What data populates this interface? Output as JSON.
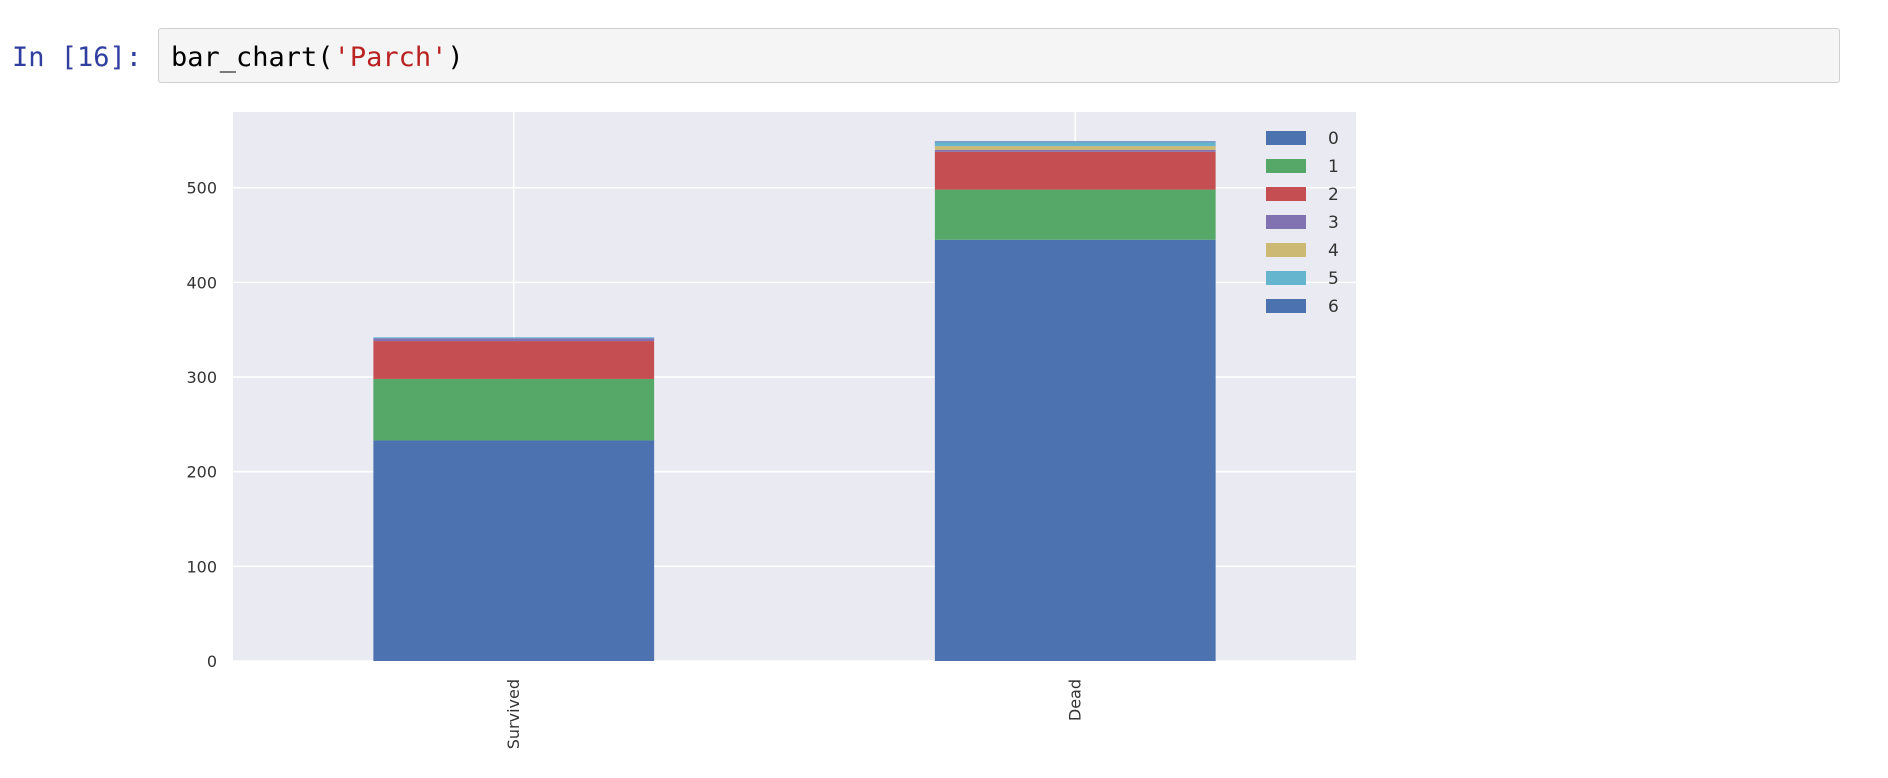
{
  "cell": {
    "prompt": "In [16]:",
    "code": {
      "func": "bar_chart(",
      "arg": "'Parch'",
      "close": ")"
    }
  },
  "chart_data": {
    "type": "bar",
    "stacked": true,
    "categories": [
      "Survived",
      "Dead"
    ],
    "series": [
      {
        "name": "0",
        "values": [
          233,
          445
        ]
      },
      {
        "name": "1",
        "values": [
          65,
          53
        ]
      },
      {
        "name": "2",
        "values": [
          40,
          40
        ]
      },
      {
        "name": "3",
        "values": [
          3,
          2
        ]
      },
      {
        "name": "4",
        "values": [
          0,
          4
        ]
      },
      {
        "name": "5",
        "values": [
          1,
          4
        ]
      },
      {
        "name": "6",
        "values": [
          0,
          1
        ]
      }
    ],
    "colors": [
      "#4c72b0",
      "#55a868",
      "#c44e52",
      "#8172b2",
      "#ccb974",
      "#64b5cd",
      "#4c72b0"
    ],
    "yticks": [
      "0",
      "100",
      "200",
      "300",
      "400",
      "500"
    ],
    "ylim": [
      0,
      580
    ],
    "xlabel": "",
    "ylabel": "",
    "title": "",
    "grid": true,
    "legend_position": "top-right",
    "background": "#eaeaf2"
  }
}
